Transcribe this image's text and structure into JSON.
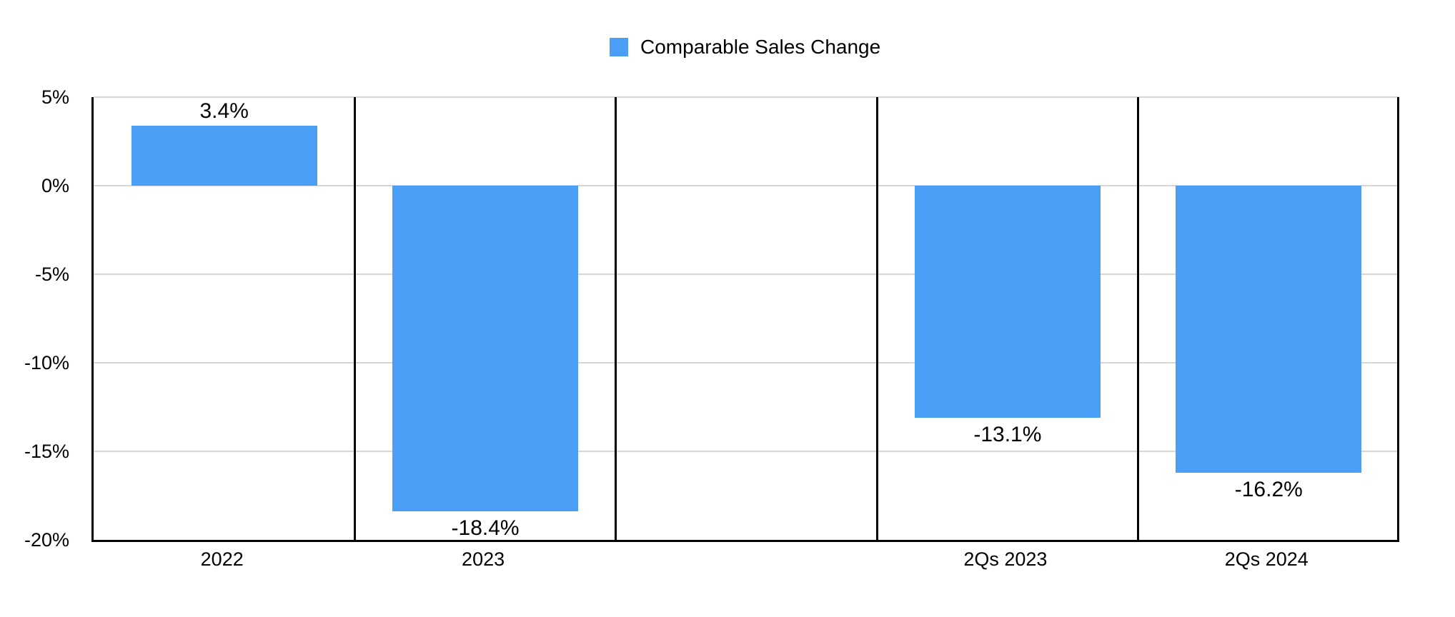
{
  "legend": {
    "label": "Comparable Sales Change",
    "color": "#4A9EF5"
  },
  "chart_data": {
    "type": "bar",
    "title": "",
    "xlabel": "",
    "ylabel": "",
    "categories": [
      "2022",
      "2023",
      "",
      "2Qs 2023",
      "2Qs 2024"
    ],
    "values": [
      3.4,
      -18.4,
      null,
      -13.1,
      -16.2
    ],
    "value_labels": [
      "3.4%",
      "-18.4%",
      "",
      "-13.1%",
      "-16.2%"
    ],
    "ylim": [
      -20,
      5
    ],
    "yticks": [
      5,
      0,
      -5,
      -10,
      -15,
      -20
    ],
    "ytick_labels": [
      "5%",
      "0%",
      "-5%",
      "-10%",
      "-15%",
      "-20%"
    ],
    "grid": true,
    "legend_position": "top-center",
    "bar_color": "#4A9EF5",
    "gridline_color": "#d6d6d6",
    "axis_color": "#000000"
  }
}
